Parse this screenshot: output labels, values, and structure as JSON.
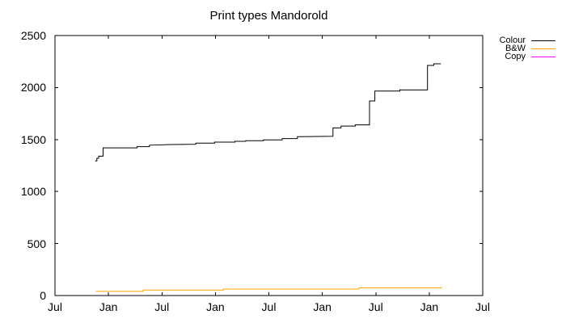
{
  "title": "Print types Mandorold",
  "colors": {
    "background": "#ffffff",
    "axis": "#000000",
    "colour_series": "#000000",
    "bw_series": "#ffa500",
    "copy_series": "#ff00ff"
  },
  "chart_data": {
    "type": "line",
    "title": "Print types Mandorold",
    "xlabel": "",
    "ylabel": "",
    "x_unit": "months since first July tick (step/cumulative monthly counts)",
    "xlim": [
      0,
      48
    ],
    "ylim": [
      0,
      2500
    ],
    "grid": false,
    "legend_position": "top-right-outside",
    "y_ticks": [
      0,
      500,
      1000,
      1500,
      2000,
      2500
    ],
    "x_ticks": [
      {
        "pos": 0,
        "label": "Jul"
      },
      {
        "pos": 6,
        "label": "Jan"
      },
      {
        "pos": 12,
        "label": "Jul"
      },
      {
        "pos": 18,
        "label": "Jan"
      },
      {
        "pos": 24,
        "label": "Jul"
      },
      {
        "pos": 30,
        "label": "Jan"
      },
      {
        "pos": 36,
        "label": "Jul"
      },
      {
        "pos": 42,
        "label": "Jan"
      },
      {
        "pos": 48,
        "label": "Jul"
      }
    ],
    "series": [
      {
        "name": "Colour",
        "color": "#000000",
        "points": [
          [
            4.5,
            1295
          ],
          [
            4.7,
            1295
          ],
          [
            4.7,
            1320
          ],
          [
            4.9,
            1320
          ],
          [
            4.9,
            1340
          ],
          [
            5.4,
            1340
          ],
          [
            5.4,
            1420
          ],
          [
            9.2,
            1420
          ],
          [
            9.2,
            1432
          ],
          [
            10.6,
            1432
          ],
          [
            10.6,
            1446
          ],
          [
            13.0,
            1452
          ],
          [
            15.8,
            1455
          ],
          [
            15.8,
            1465
          ],
          [
            17.9,
            1465
          ],
          [
            17.9,
            1475
          ],
          [
            20.2,
            1475
          ],
          [
            20.2,
            1483
          ],
          [
            21.4,
            1483
          ],
          [
            21.4,
            1489
          ],
          [
            23.4,
            1489
          ],
          [
            23.4,
            1496
          ],
          [
            25.5,
            1496
          ],
          [
            25.5,
            1509
          ],
          [
            27.2,
            1509
          ],
          [
            27.2,
            1527
          ],
          [
            31.2,
            1531
          ],
          [
            31.2,
            1612
          ],
          [
            32.1,
            1612
          ],
          [
            32.1,
            1630
          ],
          [
            33.7,
            1630
          ],
          [
            33.7,
            1641
          ],
          [
            35.3,
            1641
          ],
          [
            35.3,
            1871
          ],
          [
            35.9,
            1871
          ],
          [
            35.9,
            1967
          ],
          [
            38.7,
            1967
          ],
          [
            38.7,
            1977
          ],
          [
            41.8,
            1977
          ],
          [
            41.8,
            2213
          ],
          [
            42.5,
            2213
          ],
          [
            42.5,
            2228
          ],
          [
            43.3,
            2228
          ]
        ]
      },
      {
        "name": "B&W",
        "color": "#ffa500",
        "points": [
          [
            4.6,
            40
          ],
          [
            9.9,
            40
          ],
          [
            9.9,
            52
          ],
          [
            18.9,
            52
          ],
          [
            18.9,
            62
          ],
          [
            34.1,
            62
          ],
          [
            34.1,
            74
          ],
          [
            43.4,
            74
          ]
        ]
      },
      {
        "name": "Copy",
        "color": "#ff00ff",
        "points": []
      }
    ]
  }
}
